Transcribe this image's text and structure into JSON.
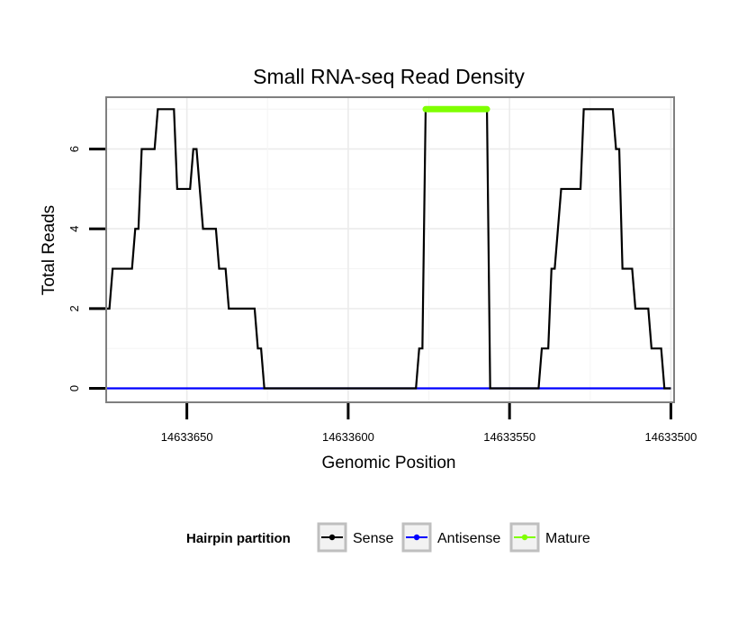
{
  "chart_data": {
    "type": "line",
    "title": "Small RNA-seq Read Density",
    "xlabel": "Genomic Position",
    "ylabel": "Total Reads",
    "xlim": [
      14633675,
      14633499
    ],
    "ylim": [
      -0.35,
      7.3
    ],
    "x_reversed": true,
    "x_ticks": [
      14633650,
      14633600,
      14633550,
      14633500
    ],
    "x_tick_labels": [
      "14633650",
      "14633600",
      "14633550",
      "14633500"
    ],
    "y_ticks": [
      0,
      2,
      4,
      6
    ],
    "y_tick_labels": [
      "0",
      "2",
      "4",
      "6"
    ],
    "grid": true,
    "legend": {
      "title": "Hairpin partition",
      "position": "bottom",
      "entries": [
        {
          "name": "Sense",
          "color": "#000000"
        },
        {
          "name": "Antisense",
          "color": "#0000ff"
        },
        {
          "name": "Mature",
          "color": "#7fff00"
        }
      ]
    },
    "series": [
      {
        "name": "Sense",
        "color": "#000000",
        "points": [
          [
            14633675,
            2
          ],
          [
            14633674,
            2
          ],
          [
            14633673,
            3
          ],
          [
            14633667,
            3
          ],
          [
            14633666,
            4
          ],
          [
            14633665,
            4
          ],
          [
            14633664,
            6
          ],
          [
            14633660,
            6
          ],
          [
            14633659,
            7
          ],
          [
            14633654,
            7
          ],
          [
            14633653,
            5
          ],
          [
            14633649,
            5
          ],
          [
            14633648,
            6
          ],
          [
            14633647,
            6
          ],
          [
            14633646,
            5
          ],
          [
            14633645,
            4
          ],
          [
            14633641,
            4
          ],
          [
            14633640,
            3
          ],
          [
            14633638,
            3
          ],
          [
            14633637,
            2
          ],
          [
            14633629,
            2
          ],
          [
            14633628,
            1
          ],
          [
            14633627,
            1
          ],
          [
            14633626,
            0
          ],
          [
            14633579,
            0
          ],
          [
            14633578,
            1
          ],
          [
            14633577,
            1
          ],
          [
            14633576,
            7
          ],
          [
            14633557,
            7
          ],
          [
            14633556,
            0
          ],
          [
            14633541,
            0
          ],
          [
            14633540,
            1
          ],
          [
            14633538,
            1
          ],
          [
            14633537,
            3
          ],
          [
            14633536,
            3
          ],
          [
            14633535,
            4
          ],
          [
            14633534,
            5
          ],
          [
            14633528,
            5
          ],
          [
            14633527,
            7
          ],
          [
            14633518,
            7
          ],
          [
            14633517,
            6
          ],
          [
            14633516,
            6
          ],
          [
            14633515,
            3
          ],
          [
            14633512,
            3
          ],
          [
            14633511,
            2
          ],
          [
            14633507,
            2
          ],
          [
            14633506,
            1
          ],
          [
            14633503,
            1
          ],
          [
            14633502,
            0
          ],
          [
            14633500,
            0
          ]
        ]
      },
      {
        "name": "Antisense",
        "color": "#0000ff",
        "points": [
          [
            14633675,
            0
          ],
          [
            14633500,
            0
          ]
        ]
      },
      {
        "name": "Mature",
        "color": "#7fff00",
        "points": [
          [
            14633576,
            7
          ],
          [
            14633557,
            7
          ]
        ]
      }
    ]
  }
}
